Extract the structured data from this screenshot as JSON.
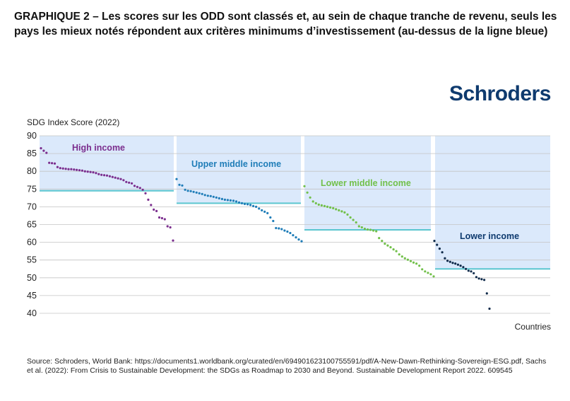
{
  "title": "GRAPHIQUE 2 – Les scores sur les ODD sont classés et, au sein de chaque tranche de revenu, seuls les pays les mieux notés répondent aux critères minimums d’investissement (au-dessus de la ligne bleue)",
  "logo_text": "Schroders",
  "source": "Source: Schroders, World Bank: https://documents1.worldbank.org/curated/en/694901623100755591/pdf/A-New-Dawn-Rethinking-Sovereign-ESG.pdf, Sachs et al. (2022): From Crisis to Sustainable Development: the SDGs as Roadmap to 2030 and Beyond. Sustainable Development Report 2022. 609545",
  "colors": {
    "band": "#dbe9fb",
    "threshold": "#5bc6cf",
    "grid": "#c4c4c4",
    "logo": "#0e3a6e"
  },
  "chart_data": {
    "type": "scatter",
    "ylabel": "SDG Index Score (2022)",
    "xlabel": "Countries",
    "ylim": [
      40,
      90
    ],
    "yticks": [
      90,
      85,
      80,
      75,
      70,
      65,
      60,
      55,
      50,
      45,
      40
    ],
    "series": [
      {
        "name": "High income",
        "color": "#7b2e8e",
        "threshold": 74.5,
        "values": [
          86.5,
          85.8,
          85.2,
          82.4,
          82.3,
          82.2,
          81.2,
          80.9,
          80.8,
          80.7,
          80.6,
          80.6,
          80.5,
          80.4,
          80.3,
          80.2,
          80.0,
          79.9,
          79.8,
          79.7,
          79.5,
          79.2,
          79.0,
          78.9,
          78.8,
          78.6,
          78.4,
          78.2,
          78.0,
          77.8,
          77.5,
          77.0,
          76.8,
          76.6,
          75.9,
          75.6,
          75.3,
          74.8,
          73.8,
          72.0,
          70.5,
          69.2,
          68.8,
          67.0,
          66.8,
          66.5,
          64.5,
          64.2,
          60.5
        ]
      },
      {
        "name": "Upper middle income",
        "color": "#1f7db8",
        "threshold": 71.0,
        "values": [
          77.8,
          76.2,
          76.0,
          74.8,
          74.5,
          74.4,
          74.2,
          74.0,
          73.8,
          73.6,
          73.3,
          73.1,
          73.0,
          72.8,
          72.6,
          72.4,
          72.2,
          72.0,
          71.9,
          71.8,
          71.7,
          71.5,
          71.2,
          71.0,
          70.8,
          70.7,
          70.5,
          70.2,
          70.0,
          69.5,
          69.0,
          68.6,
          68.2,
          67.0,
          66.0,
          64.0,
          63.9,
          63.7,
          63.3,
          63.0,
          62.6,
          62.0,
          61.4,
          60.8,
          60.3
        ]
      },
      {
        "name": "Lower middle income",
        "color": "#72c04a",
        "threshold": 63.5,
        "values": [
          75.8,
          74.0,
          72.6,
          71.5,
          71.0,
          70.6,
          70.4,
          70.2,
          70.0,
          69.8,
          69.6,
          69.3,
          69.0,
          68.7,
          68.4,
          67.8,
          67.0,
          66.3,
          65.6,
          64.5,
          64.2,
          63.8,
          63.6,
          63.5,
          63.3,
          63.1,
          61.2,
          60.4,
          59.6,
          59.1,
          58.6,
          58.0,
          57.5,
          56.6,
          56.0,
          55.5,
          55.1,
          54.7,
          54.3,
          54.0,
          53.4,
          52.4,
          51.8,
          51.4,
          51.0,
          50.4
        ]
      },
      {
        "name": "Lower income",
        "color": "#0f2a4a",
        "threshold": 52.5,
        "values": [
          60.4,
          59.3,
          58.2,
          57.2,
          55.5,
          54.8,
          54.5,
          54.2,
          54.0,
          53.7,
          53.4,
          53.0,
          52.5,
          52.0,
          51.8,
          51.3,
          50.2,
          49.8,
          49.6,
          49.4,
          45.6,
          41.3
        ]
      }
    ]
  }
}
